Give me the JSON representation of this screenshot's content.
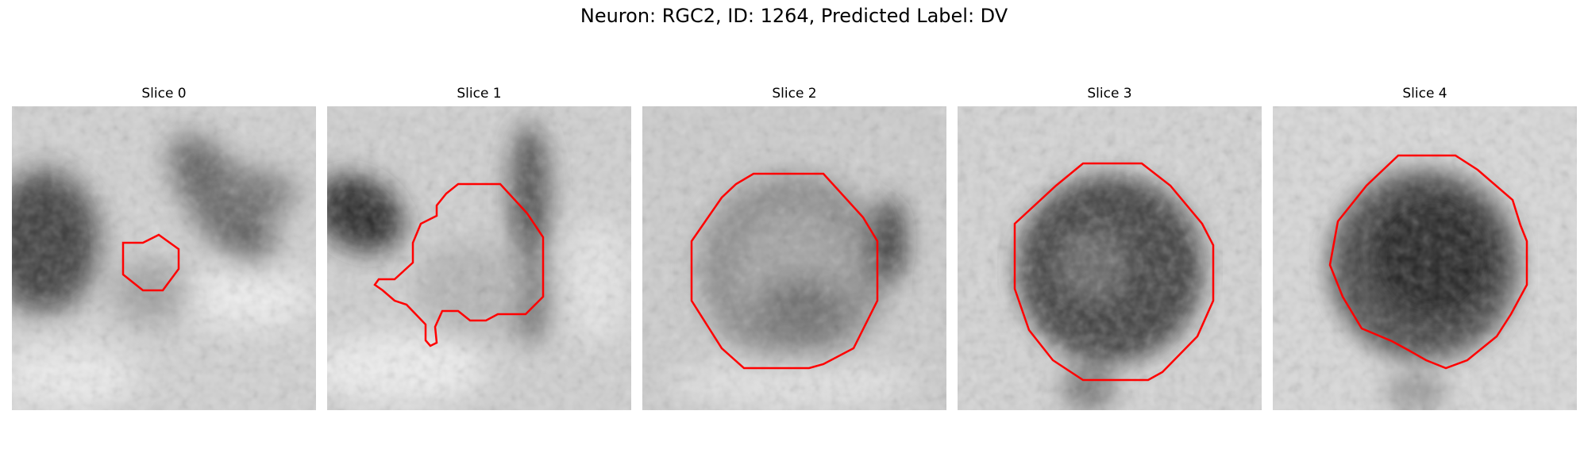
{
  "figure": {
    "title": "Neuron: RGC2, ID: 1264, Predicted Label: DV"
  },
  "panels": [
    {
      "title": "Slice 0"
    },
    {
      "title": "Slice 1"
    },
    {
      "title": "Slice 2"
    },
    {
      "title": "Slice 3"
    },
    {
      "title": "Slice 4"
    }
  ],
  "colors": {
    "contour": "#ff0000"
  }
}
